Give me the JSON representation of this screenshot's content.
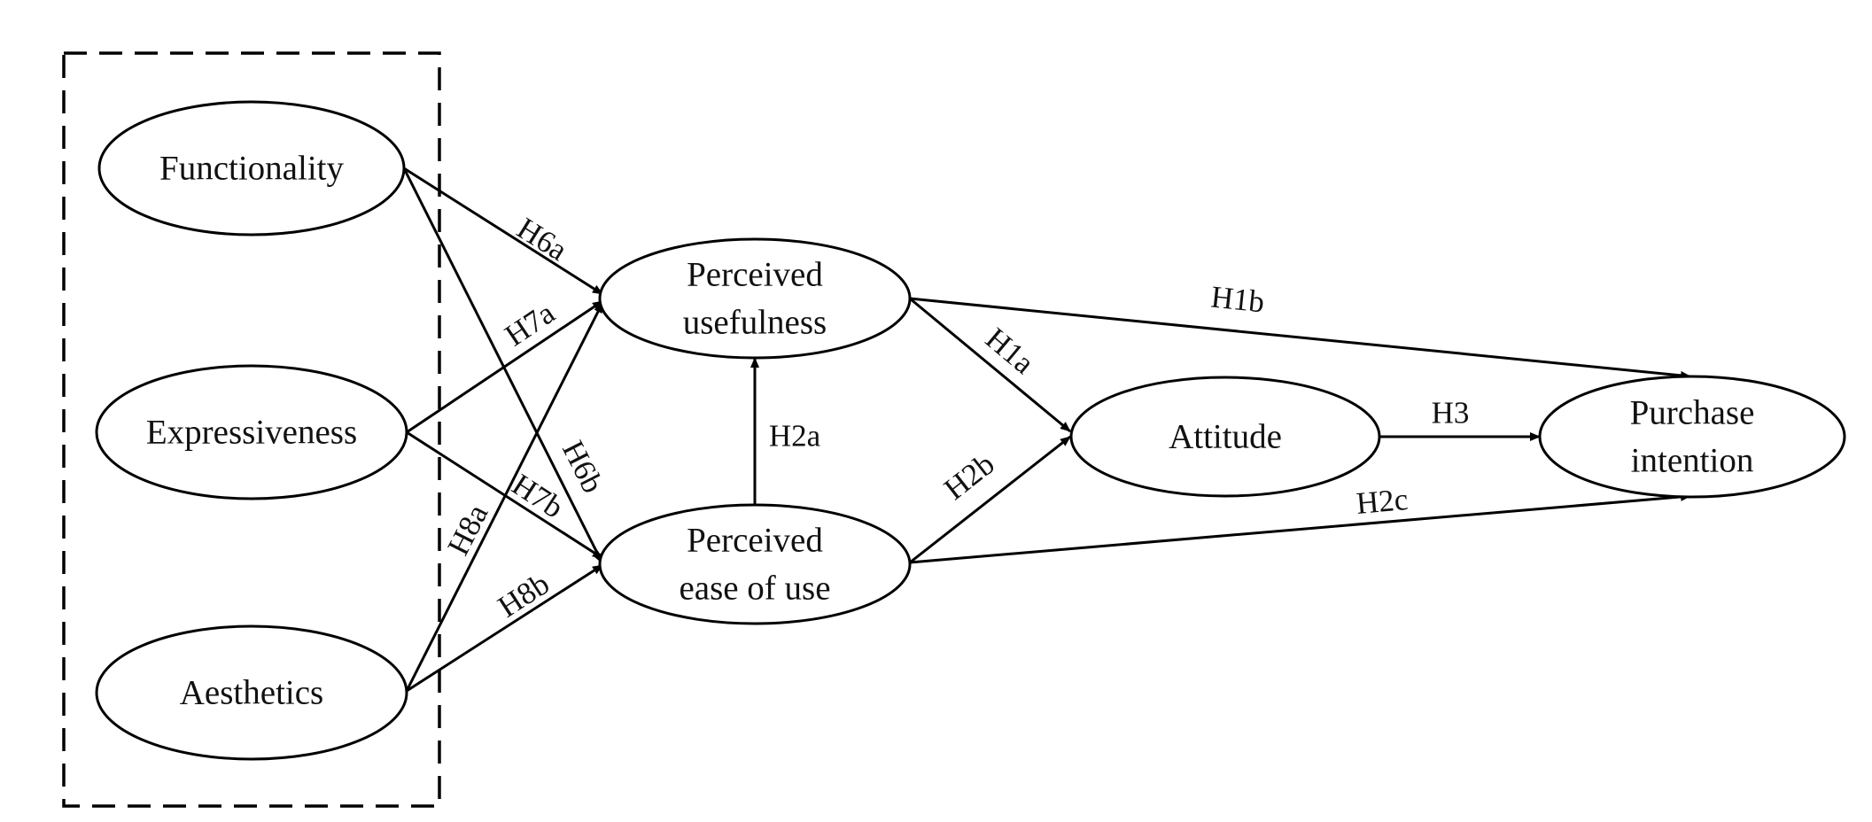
{
  "nodes": {
    "functionality": [
      "Functionality"
    ],
    "expressiveness": [
      "Expressiveness"
    ],
    "aesthetics": [
      "Aesthetics"
    ],
    "perceived_usefulness": [
      "Perceived",
      "usefulness"
    ],
    "perceived_ease_of_use": [
      "Perceived",
      "ease of use"
    ],
    "attitude": [
      "Attitude"
    ],
    "purchase_intention": [
      "Purchase",
      "intention"
    ]
  },
  "edges": {
    "h6a": {
      "from": "functionality",
      "to": "perceived_usefulness",
      "label": "H6a"
    },
    "h6b": {
      "from": "functionality",
      "to": "perceived_ease_of_use",
      "label": "H6b"
    },
    "h7a": {
      "from": "expressiveness",
      "to": "perceived_usefulness",
      "label": "H7a"
    },
    "h7b": {
      "from": "expressiveness",
      "to": "perceived_ease_of_use",
      "label": "H7b"
    },
    "h8a": {
      "from": "aesthetics",
      "to": "perceived_usefulness",
      "label": "H8a"
    },
    "h8b": {
      "from": "aesthetics",
      "to": "perceived_ease_of_use",
      "label": "H8b"
    },
    "h2a": {
      "from": "perceived_ease_of_use",
      "to": "perceived_usefulness",
      "label": "H2a"
    },
    "h1a": {
      "from": "perceived_usefulness",
      "to": "attitude",
      "label": "H1a"
    },
    "h1b": {
      "from": "perceived_usefulness",
      "to": "purchase_intention",
      "label": "H1b"
    },
    "h2b": {
      "from": "perceived_ease_of_use",
      "to": "attitude",
      "label": "H2b"
    },
    "h2c": {
      "from": "perceived_ease_of_use",
      "to": "purchase_intention",
      "label": "H2c"
    },
    "h3": {
      "from": "attitude",
      "to": "purchase_intention",
      "label": "H3"
    }
  }
}
